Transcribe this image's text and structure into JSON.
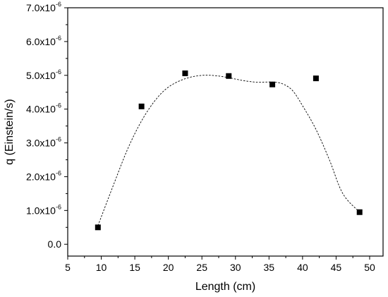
{
  "chart_data": {
    "type": "scatter",
    "title": "",
    "xlabel": "Length (cm)",
    "ylabel": "q (Einstein/s)",
    "xlim": [
      5,
      52
    ],
    "ylim": [
      -0.35,
      7.0
    ],
    "y_multiplier_exponent": "-6",
    "x_ticks": [
      5,
      10,
      15,
      20,
      25,
      30,
      35,
      40,
      45,
      50
    ],
    "x_tick_labels": [
      "5",
      "10",
      "15",
      "20",
      "25",
      "30",
      "35",
      "40",
      "45",
      "50"
    ],
    "y_ticks": [
      0,
      1,
      2,
      3,
      4,
      5,
      6,
      7
    ],
    "y_tick_labels": [
      {
        "mantissa": "0.0",
        "exp": ""
      },
      {
        "mantissa": "1.0x10",
        "exp": "-6"
      },
      {
        "mantissa": "2.0x10",
        "exp": "-6"
      },
      {
        "mantissa": "3.0x10",
        "exp": "-6"
      },
      {
        "mantissa": "4.0x10",
        "exp": "-6"
      },
      {
        "mantissa": "5.0x10",
        "exp": "-6"
      },
      {
        "mantissa": "6.0x10",
        "exp": "-6"
      },
      {
        "mantissa": "7.0x10",
        "exp": "-6"
      }
    ],
    "grid": false,
    "legend": "none",
    "marker_color": "#000000",
    "series": [
      {
        "marker": "square",
        "x": [
          9.5,
          16.0,
          22.5,
          29.0,
          35.5,
          42.0,
          48.5
        ],
        "y": [
          0.5,
          4.08,
          5.06,
          4.98,
          4.73,
          4.91,
          0.95
        ]
      }
    ],
    "fit_curve": {
      "style": "dotted",
      "x": [
        9.5,
        12,
        14,
        16,
        18,
        20,
        22.5,
        25,
        27,
        29,
        31,
        33,
        35.5,
        37,
        38.5,
        40,
        42,
        44,
        46,
        48.5
      ],
      "y": [
        0.55,
        1.85,
        2.85,
        3.65,
        4.25,
        4.65,
        4.9,
        5.0,
        4.99,
        4.93,
        4.85,
        4.8,
        4.8,
        4.75,
        4.55,
        4.1,
        3.4,
        2.5,
        1.5,
        0.95
      ]
    }
  }
}
